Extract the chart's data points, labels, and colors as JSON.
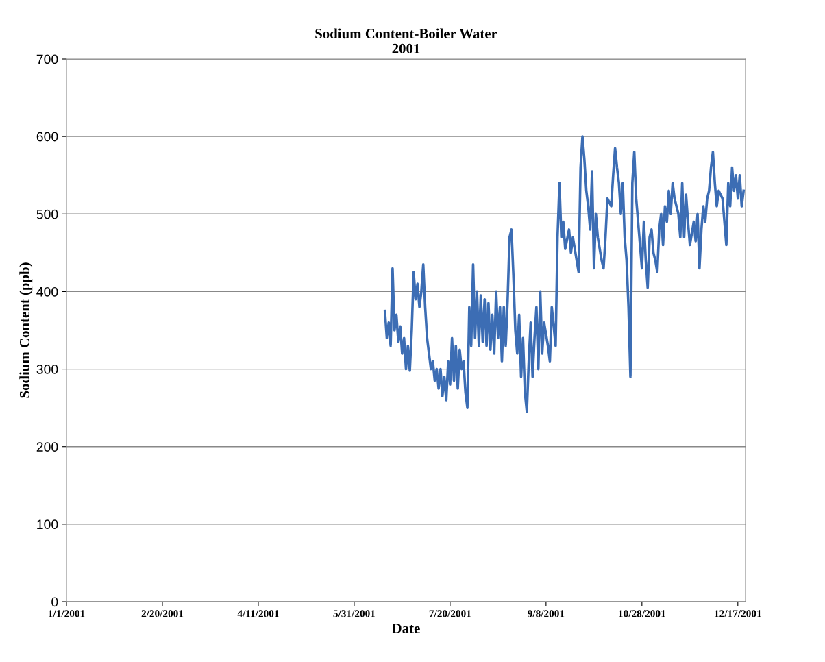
{
  "chart_data": {
    "type": "line",
    "title": "Sodium Content-Boiler Water\n2001",
    "xlabel": "Date",
    "ylabel": "Sodium Content (ppb)",
    "xlim": [
      "2001-01-01",
      "2001-12-21"
    ],
    "xticks": [
      {
        "value": "2001-01-01",
        "label": "1/1/2001"
      },
      {
        "value": "2001-02-20",
        "label": "2/20/2001"
      },
      {
        "value": "2001-04-11",
        "label": "4/11/2001"
      },
      {
        "value": "2001-05-31",
        "label": "5/31/2001"
      },
      {
        "value": "2001-07-20",
        "label": "7/20/2001"
      },
      {
        "value": "2001-09-08",
        "label": "9/8/2001"
      },
      {
        "value": "2001-10-28",
        "label": "10/28/2001"
      },
      {
        "value": "2001-12-17",
        "label": "12/17/2001"
      }
    ],
    "ylim": [
      0,
      700
    ],
    "yticks": [
      0,
      100,
      200,
      300,
      400,
      500,
      600,
      700
    ],
    "grid": "y",
    "legend": false,
    "series": [
      {
        "color": "#3c6db4",
        "x": [
          "2001-06-16",
          "2001-06-17",
          "2001-06-18",
          "2001-06-19",
          "2001-06-20",
          "2001-06-21",
          "2001-06-22",
          "2001-06-23",
          "2001-06-24",
          "2001-06-25",
          "2001-06-26",
          "2001-06-27",
          "2001-06-28",
          "2001-06-29",
          "2001-06-30",
          "2001-07-01",
          "2001-07-02",
          "2001-07-03",
          "2001-07-04",
          "2001-07-05",
          "2001-07-06",
          "2001-07-07",
          "2001-07-08",
          "2001-07-09",
          "2001-07-10",
          "2001-07-11",
          "2001-07-12",
          "2001-07-13",
          "2001-07-14",
          "2001-07-15",
          "2001-07-16",
          "2001-07-17",
          "2001-07-18",
          "2001-07-19",
          "2001-07-20",
          "2001-07-21",
          "2001-07-22",
          "2001-07-23",
          "2001-07-24",
          "2001-07-25",
          "2001-07-26",
          "2001-07-27",
          "2001-07-28",
          "2001-07-29",
          "2001-07-30",
          "2001-07-31",
          "2001-08-01",
          "2001-08-02",
          "2001-08-03",
          "2001-08-04",
          "2001-08-05",
          "2001-08-06",
          "2001-08-07",
          "2001-08-08",
          "2001-08-09",
          "2001-08-10",
          "2001-08-11",
          "2001-08-12",
          "2001-08-13",
          "2001-08-14",
          "2001-08-15",
          "2001-08-16",
          "2001-08-17",
          "2001-08-18",
          "2001-08-19",
          "2001-08-20",
          "2001-08-21",
          "2001-08-22",
          "2001-08-23",
          "2001-08-24",
          "2001-08-25",
          "2001-08-26",
          "2001-08-27",
          "2001-08-28",
          "2001-08-29",
          "2001-08-30",
          "2001-08-31",
          "2001-09-01",
          "2001-09-02",
          "2001-09-03",
          "2001-09-04",
          "2001-09-05",
          "2001-09-06",
          "2001-09-07",
          "2001-09-09",
          "2001-09-10",
          "2001-09-11",
          "2001-09-13",
          "2001-09-14",
          "2001-09-15",
          "2001-09-16",
          "2001-09-17",
          "2001-09-18",
          "2001-09-20",
          "2001-09-21",
          "2001-09-22",
          "2001-09-24",
          "2001-09-25",
          "2001-09-26",
          "2001-09-27",
          "2001-09-28",
          "2001-09-29",
          "2001-09-30",
          "2001-10-01",
          "2001-10-02",
          "2001-10-03",
          "2001-10-04",
          "2001-10-05",
          "2001-10-07",
          "2001-10-08",
          "2001-10-09",
          "2001-10-10",
          "2001-10-12",
          "2001-10-13",
          "2001-10-14",
          "2001-10-15",
          "2001-10-16",
          "2001-10-17",
          "2001-10-18",
          "2001-10-19",
          "2001-10-20",
          "2001-10-21",
          "2001-10-22",
          "2001-10-23",
          "2001-10-24",
          "2001-10-25",
          "2001-10-26",
          "2001-10-27",
          "2001-10-28",
          "2001-10-29",
          "2001-10-30",
          "2001-10-31",
          "2001-11-01",
          "2001-11-02",
          "2001-11-03",
          "2001-11-04",
          "2001-11-05",
          "2001-11-06",
          "2001-11-07",
          "2001-11-08",
          "2001-11-09",
          "2001-11-10",
          "2001-11-11",
          "2001-11-12",
          "2001-11-13",
          "2001-11-14",
          "2001-11-16",
          "2001-11-17",
          "2001-11-18",
          "2001-11-19",
          "2001-11-20",
          "2001-11-21",
          "2001-11-22",
          "2001-11-24",
          "2001-11-25",
          "2001-11-26",
          "2001-11-27",
          "2001-11-28",
          "2001-11-29",
          "2001-11-30",
          "2001-12-01",
          "2001-12-02",
          "2001-12-03",
          "2001-12-04",
          "2001-12-05",
          "2001-12-06",
          "2001-12-07",
          "2001-12-09",
          "2001-12-10",
          "2001-12-11",
          "2001-12-12",
          "2001-12-13",
          "2001-12-14",
          "2001-12-15",
          "2001-12-16",
          "2001-12-17",
          "2001-12-18",
          "2001-12-19",
          "2001-12-20"
        ],
        "values": [
          375,
          340,
          360,
          330,
          430,
          350,
          370,
          335,
          355,
          320,
          340,
          300,
          330,
          298,
          350,
          425,
          390,
          410,
          380,
          400,
          435,
          380,
          340,
          320,
          300,
          310,
          285,
          300,
          275,
          300,
          265,
          290,
          260,
          310,
          280,
          340,
          285,
          330,
          275,
          325,
          300,
          310,
          270,
          250,
          380,
          330,
          435,
          340,
          400,
          330,
          395,
          335,
          390,
          330,
          385,
          325,
          370,
          320,
          400,
          340,
          380,
          310,
          380,
          330,
          390,
          470,
          480,
          420,
          350,
          320,
          370,
          290,
          340,
          270,
          245,
          310,
          360,
          290,
          340,
          380,
          300,
          400,
          320,
          360,
          330,
          310,
          380,
          330,
          470,
          540,
          470,
          490,
          455,
          480,
          450,
          470,
          440,
          425,
          560,
          600,
          570,
          530,
          510,
          480,
          555,
          430,
          500,
          470,
          440,
          430,
          470,
          520,
          510,
          550,
          585,
          560,
          540,
          500,
          540,
          470,
          440,
          380,
          290,
          540,
          580,
          520,
          490,
          460,
          430,
          490,
          440,
          405,
          470,
          480,
          450,
          440,
          425,
          480,
          500,
          460,
          510,
          490,
          530,
          500,
          540,
          520,
          500,
          470,
          540,
          470,
          525,
          490,
          460,
          490,
          465,
          500,
          430,
          480,
          510,
          490,
          520,
          530,
          560,
          580,
          540,
          510,
          530,
          520,
          490,
          460,
          540,
          510,
          560,
          530,
          550,
          520,
          550,
          510,
          530
        ]
      }
    ]
  }
}
